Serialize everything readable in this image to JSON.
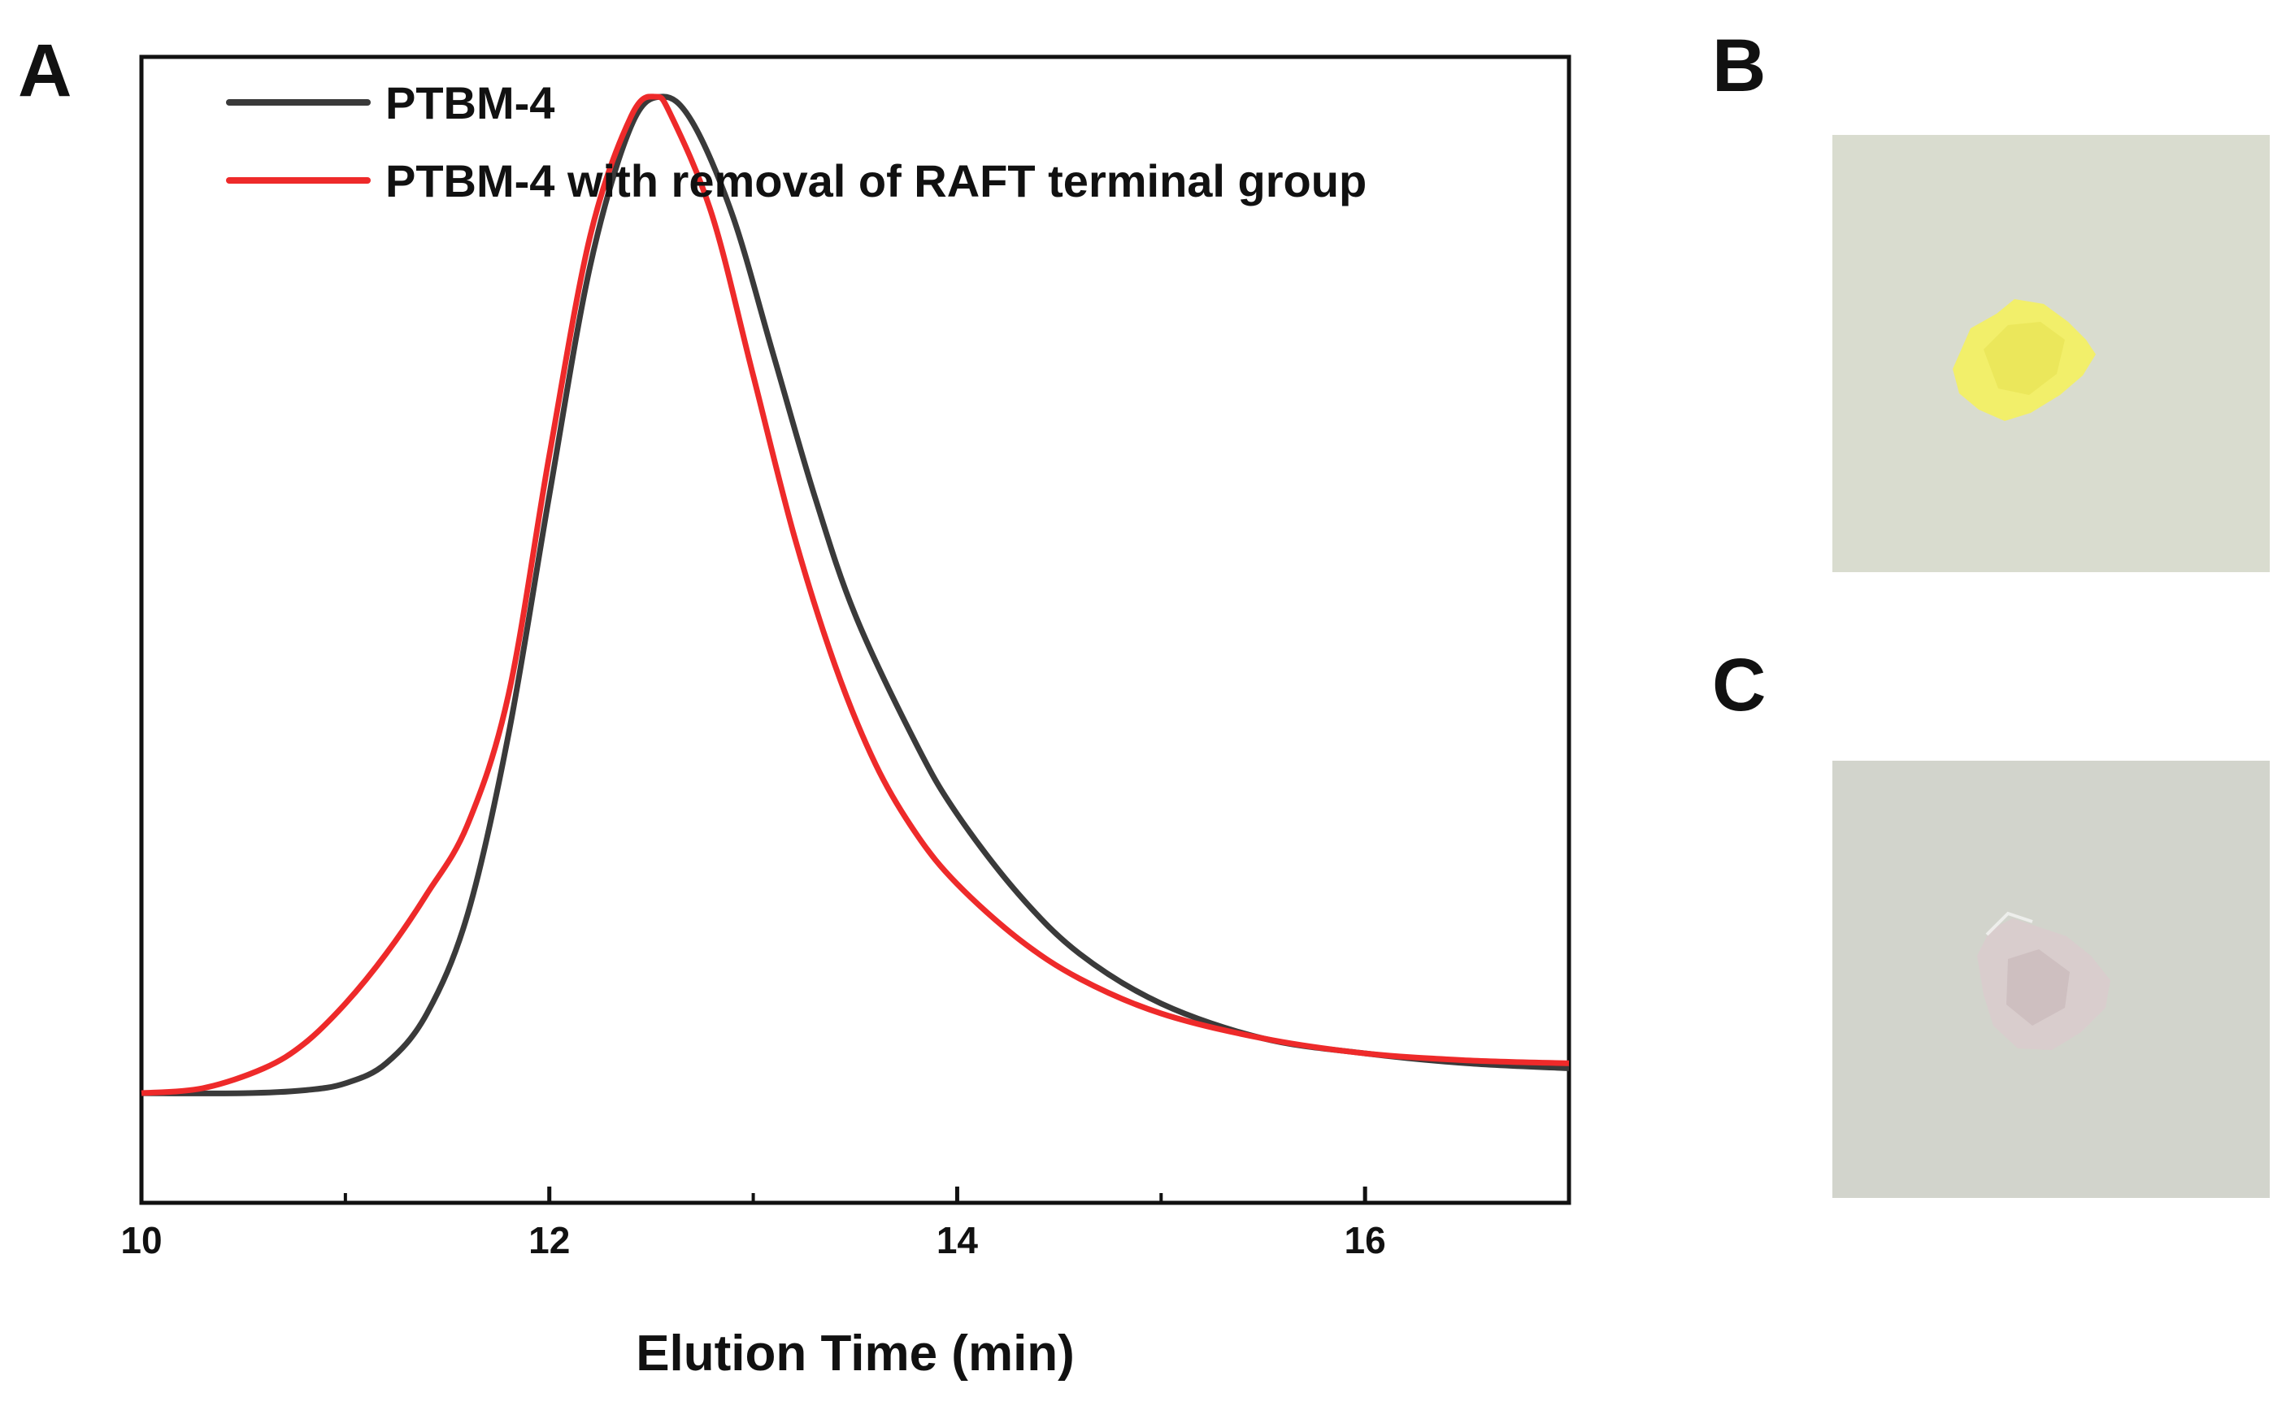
{
  "panels": {
    "a": {
      "letter": "A"
    },
    "b": {
      "letter": "B"
    },
    "c": {
      "letter": "C"
    }
  },
  "photos": {
    "b": {
      "background": "#d9dccf",
      "sample_color": "#f2ef6a",
      "description_color": "yellow"
    },
    "c": {
      "background": "#d2d4cc",
      "sample_color": "#d9cdcd",
      "description_color": "pale pink"
    }
  },
  "chart_data": {
    "type": "line",
    "title": "",
    "xlabel": "Elution Time (min)",
    "ylabel": "",
    "xlim": [
      10,
      17
    ],
    "ylim": [
      -0.11,
      1.04
    ],
    "x_ticks": [
      10,
      12,
      14,
      16
    ],
    "x_minor_ticks": [
      11,
      13,
      15
    ],
    "y_ticks_shown": false,
    "grid": false,
    "legend_position": "top-left",
    "series": [
      {
        "name": "PTBM-4",
        "color": "#3a3a3a",
        "x": [
          10,
          10.5,
          10.8,
          11.0,
          11.2,
          11.4,
          11.6,
          11.8,
          12.0,
          12.2,
          12.4,
          12.55,
          12.7,
          12.9,
          13.1,
          13.3,
          13.5,
          13.8,
          14.0,
          14.3,
          14.6,
          15.0,
          15.5,
          16.0,
          16.5,
          17.0
        ],
        "y": [
          0.0,
          0.0,
          0.003,
          0.01,
          0.03,
          0.08,
          0.18,
          0.36,
          0.6,
          0.83,
          0.97,
          1.0,
          0.975,
          0.88,
          0.74,
          0.6,
          0.48,
          0.35,
          0.28,
          0.2,
          0.14,
          0.09,
          0.055,
          0.04,
          0.03,
          0.025
        ]
      },
      {
        "name": "PTBM-4 with removal of RAFT terminal group",
        "color": "#ee2a2a",
        "x": [
          10,
          10.3,
          10.6,
          10.8,
          11.0,
          11.2,
          11.4,
          11.6,
          11.8,
          12.0,
          12.2,
          12.4,
          12.52,
          12.6,
          12.8,
          13.0,
          13.2,
          13.4,
          13.6,
          13.8,
          14.0,
          14.3,
          14.6,
          15.0,
          15.5,
          16.0,
          16.5,
          17.0
        ],
        "y": [
          0.0,
          0.005,
          0.025,
          0.05,
          0.09,
          0.14,
          0.2,
          0.27,
          0.4,
          0.64,
          0.86,
          0.98,
          1.0,
          0.98,
          0.88,
          0.72,
          0.56,
          0.43,
          0.33,
          0.26,
          0.21,
          0.155,
          0.115,
          0.08,
          0.055,
          0.04,
          0.033,
          0.03
        ]
      }
    ]
  }
}
